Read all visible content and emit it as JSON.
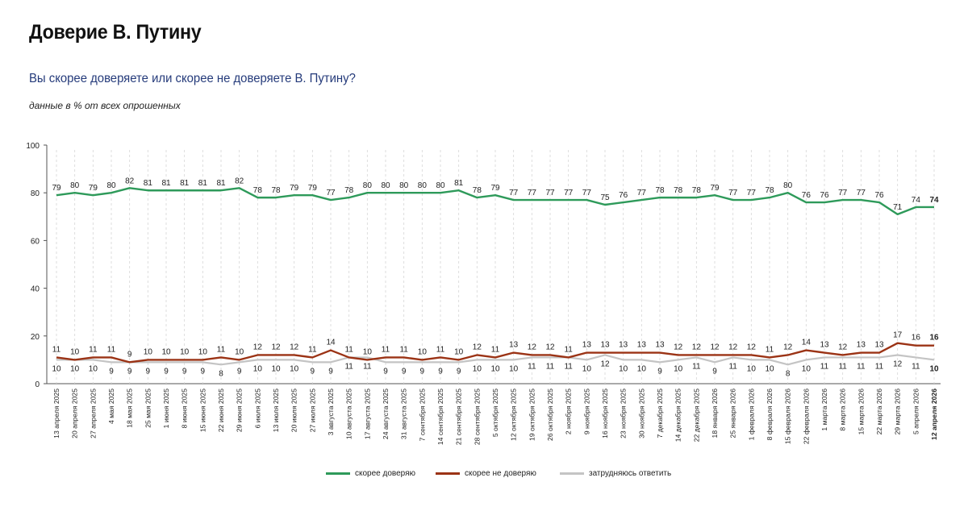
{
  "title": "Доверие В. Путину",
  "subtitle": "Вы скорее доверяете или скорее не доверяете В. Путину?",
  "note": "данные в % от всех опрошенных",
  "colors": {
    "trust": "#2e9a5a",
    "distrust": "#9b3315",
    "undecided": "#c4c4c4"
  },
  "chart_data": {
    "type": "line",
    "ylim": [
      0,
      100
    ],
    "yticks": [
      0,
      20,
      40,
      60,
      80,
      100
    ],
    "categories": [
      "13 апреля 2025",
      "20 апреля 2025",
      "27 апреля 2025",
      "4 мая 2025",
      "18 мая 2025",
      "25 мая 2025",
      "1 июня 2025",
      "8 июня 2025",
      "15 июня 2025",
      "22 июня 2025",
      "29 июня 2025",
      "6 июля 2025",
      "13 июля 2025",
      "20 июля 2025",
      "27 июля 2025",
      "3 августа 2025",
      "10 августа 2025",
      "17 августа 2025",
      "24 августа 2025",
      "31 августа 2025",
      "7 сентября 2025",
      "14 сентября 2025",
      "21 сентября 2025",
      "28 сентября 2025",
      "5 октября 2025",
      "12 октября 2025",
      "19 октября 2025",
      "26 октября 2025",
      "2 ноября 2025",
      "9 ноября 2025",
      "16 ноября 2025",
      "23 ноября 2025",
      "30 ноября 2025",
      "7 декабря 2025",
      "14 декабря 2025",
      "22 декабря 2025",
      "18 января 2026",
      "25 января 2026",
      "1 февраля 2026",
      "8 февраля 2026",
      "15 февраля 2026",
      "22 февраля 2026",
      "1 марта 2026",
      "8 марта 2026",
      "15 марта 2026",
      "22 марта 2026",
      "29 марта 2026",
      "5 апреля 2026",
      "12 апреля 2026"
    ],
    "series": [
      {
        "key": "trust",
        "name": "скорее доверяю",
        "values": [
          79,
          80,
          79,
          80,
          82,
          81,
          81,
          81,
          81,
          81,
          82,
          78,
          78,
          79,
          79,
          77,
          78,
          80,
          80,
          80,
          80,
          80,
          81,
          78,
          79,
          77,
          77,
          77,
          77,
          77,
          75,
          76,
          77,
          78,
          78,
          78,
          79,
          77,
          77,
          78,
          80,
          76,
          76,
          77,
          77,
          76,
          71,
          74,
          74
        ]
      },
      {
        "key": "distrust",
        "name": "скорее не доверяю",
        "values": [
          11,
          10,
          11,
          11,
          9,
          10,
          10,
          10,
          10,
          11,
          10,
          12,
          12,
          12,
          11,
          14,
          11,
          10,
          11,
          11,
          10,
          11,
          10,
          12,
          11,
          13,
          12,
          12,
          11,
          13,
          13,
          13,
          13,
          13,
          12,
          12,
          12,
          12,
          12,
          11,
          12,
          14,
          13,
          12,
          13,
          13,
          17,
          16,
          16
        ]
      },
      {
        "key": "undecided",
        "name": "затрудняюсь ответить",
        "values": [
          10,
          10,
          10,
          9,
          9,
          9,
          9,
          9,
          9,
          8,
          9,
          10,
          10,
          10,
          9,
          9,
          11,
          11,
          9,
          9,
          9,
          9,
          9,
          10,
          10,
          10,
          11,
          11,
          11,
          10,
          12,
          10,
          10,
          9,
          10,
          11,
          9,
          11,
          10,
          10,
          8,
          10,
          11,
          11,
          11,
          11,
          12,
          11,
          10
        ]
      }
    ]
  }
}
